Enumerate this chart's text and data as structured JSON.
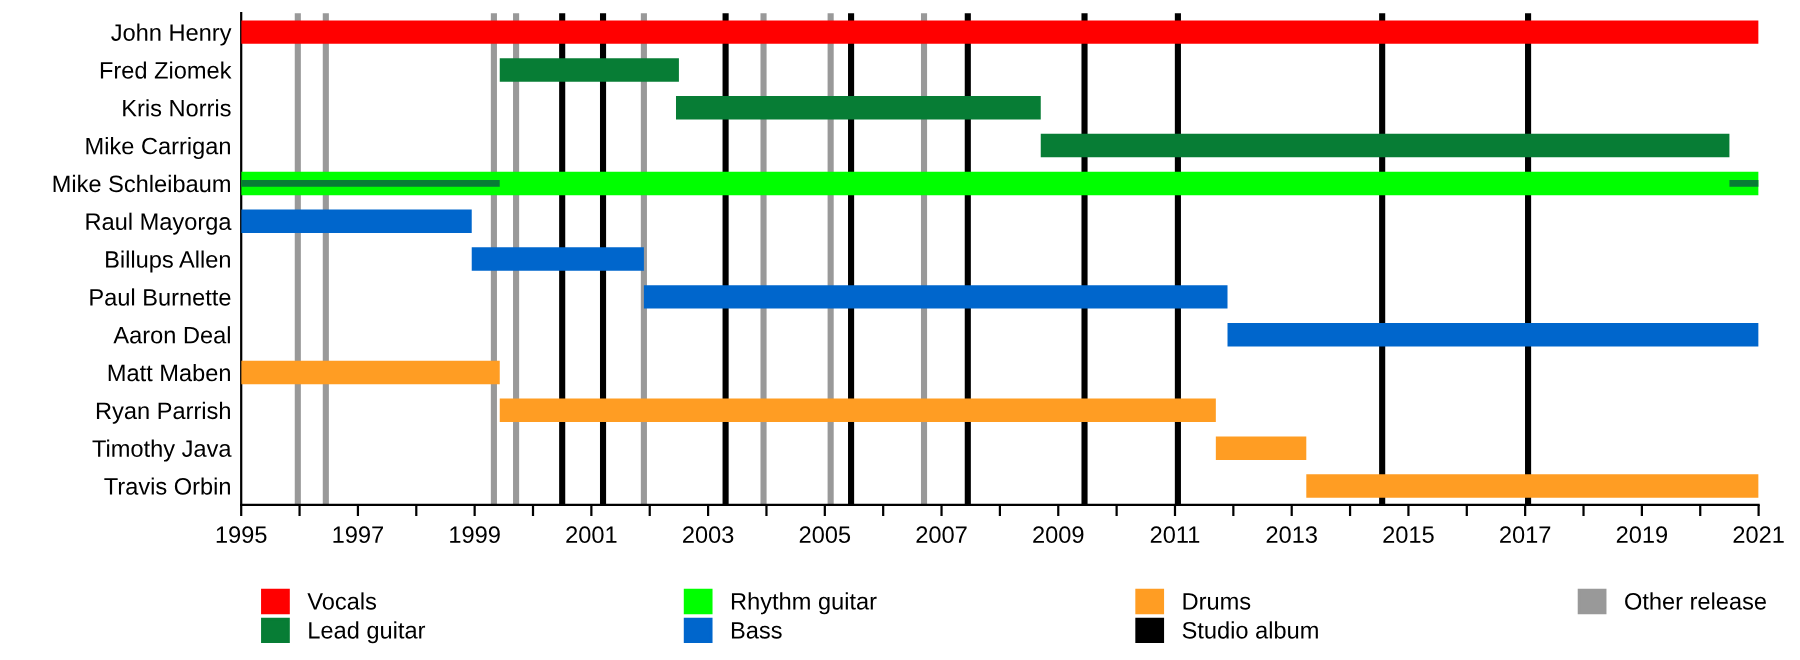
{
  "chart_data": {
    "type": "bar",
    "orientation": "horizontal",
    "categories": [
      "John Henry",
      "Fred Ziomek",
      "Kris Norris",
      "Mike Carrigan",
      "Mike Schleibaum",
      "Raul Mayorga",
      "Billups Allen",
      "Paul Burnette",
      "Aaron Deal",
      "Matt Maben",
      "Ryan Parrish",
      "Timothy Java",
      "Travis Orbin"
    ],
    "series": [
      {
        "name": "Vocals",
        "color": "#ff0000",
        "base": [
          1995,
          null,
          null,
          null,
          null,
          null,
          null,
          null,
          null,
          null,
          null,
          null,
          null
        ],
        "values": [
          26,
          null,
          null,
          null,
          null,
          null,
          null,
          null,
          null,
          null,
          null,
          null,
          null
        ]
      },
      {
        "name": "Lead guitar",
        "color": "#077d35",
        "base": [
          null,
          1999.43,
          2002.45,
          2008.7,
          1995,
          null,
          null,
          null,
          null,
          null,
          null,
          null,
          null
        ],
        "values": [
          null,
          3.07,
          6.25,
          11.8,
          4.43,
          null,
          null,
          null,
          null,
          null,
          null,
          null,
          null
        ]
      },
      {
        "name": "Rhythm guitar",
        "color": "#00ff00",
        "base": [
          null,
          null,
          null,
          null,
          1995,
          null,
          null,
          null,
          null,
          null,
          null,
          null,
          null
        ],
        "values": [
          null,
          null,
          null,
          null,
          26,
          null,
          null,
          null,
          null,
          null,
          null,
          null,
          null
        ]
      },
      {
        "name": "Bass",
        "color": "#0066cc",
        "base": [
          null,
          null,
          null,
          null,
          null,
          1995,
          1998.95,
          2001.9,
          2011.9,
          null,
          null,
          null,
          null
        ],
        "values": [
          null,
          null,
          null,
          null,
          null,
          3.95,
          2.95,
          10,
          9.1,
          null,
          null,
          null,
          null
        ]
      },
      {
        "name": "Drums",
        "color": "#ff9d23",
        "base": [
          null,
          null,
          null,
          null,
          null,
          null,
          null,
          null,
          null,
          1995,
          1999.43,
          2011.7,
          2013.25
        ],
        "values": [
          null,
          null,
          null,
          null,
          null,
          null,
          null,
          null,
          null,
          4.43,
          12.27,
          1.55,
          7.75
        ]
      },
      {
        "color": "#077d35",
        "base": [
          null,
          null,
          null,
          null,
          2020.5,
          null,
          null,
          null,
          null,
          null,
          null,
          null,
          null
        ],
        "values": [
          null,
          null,
          null,
          null,
          0.5,
          null,
          null,
          null,
          null,
          null,
          null,
          null,
          null
        ]
      }
    ],
    "xlim": [
      1995,
      2021
    ],
    "xticks": [
      1995,
      {
        "value": 1996,
        "label": null
      },
      1997,
      {
        "value": 1998,
        "label": null
      },
      1999,
      {
        "value": 2000,
        "label": null
      },
      2001,
      {
        "value": 2002,
        "label": null
      },
      2003,
      {
        "value": 2004,
        "label": null
      },
      2005,
      {
        "value": 2006,
        "label": null
      },
      2007,
      {
        "value": 2008,
        "label": null
      },
      2009,
      {
        "value": 2010,
        "label": null
      },
      2011,
      {
        "value": 2012,
        "label": null
      },
      2013,
      {
        "value": 2014,
        "label": null
      },
      2015,
      {
        "value": 2016,
        "label": null
      },
      2017,
      {
        "value": 2018,
        "label": null
      },
      2019,
      {
        "value": 2020,
        "label": null
      },
      2021
    ],
    "ref_lines": [
      {
        "axis": "x",
        "value": 2000.5,
        "label": "Studio album",
        "color": "#000000"
      },
      {
        "axis": "x",
        "value": 2001.2,
        "color": "#000000"
      },
      {
        "axis": "x",
        "value": 2003.3,
        "color": "#000000"
      },
      {
        "axis": "x",
        "value": 2005.45,
        "color": "#000000"
      },
      {
        "axis": "x",
        "value": 2007.45,
        "color": "#000000"
      },
      {
        "axis": "x",
        "value": 2009.45,
        "color": "#000000"
      },
      {
        "axis": "x",
        "value": 2011.05,
        "color": "#000000"
      },
      {
        "axis": "x",
        "value": 2014.55,
        "color": "#000000"
      },
      {
        "axis": "x",
        "value": 2017.05,
        "color": "#000000"
      },
      {
        "axis": "x",
        "value": 1995.97,
        "label": "Other release",
        "color": "#999999"
      },
      {
        "axis": "x",
        "value": 1996.45,
        "color": "#999999"
      },
      {
        "axis": "x",
        "value": 1999.33,
        "color": "#999999"
      },
      {
        "axis": "x",
        "value": 1999.71,
        "color": "#999999"
      },
      {
        "axis": "x",
        "value": 2001.9,
        "color": "#999999"
      },
      {
        "axis": "x",
        "value": 2003.95,
        "color": "#999999"
      },
      {
        "axis": "x",
        "value": 2005.1,
        "color": "#999999"
      },
      {
        "axis": "x",
        "value": 2006.7,
        "color": "#999999"
      }
    ],
    "grid": false,
    "legend": "bottom"
  }
}
